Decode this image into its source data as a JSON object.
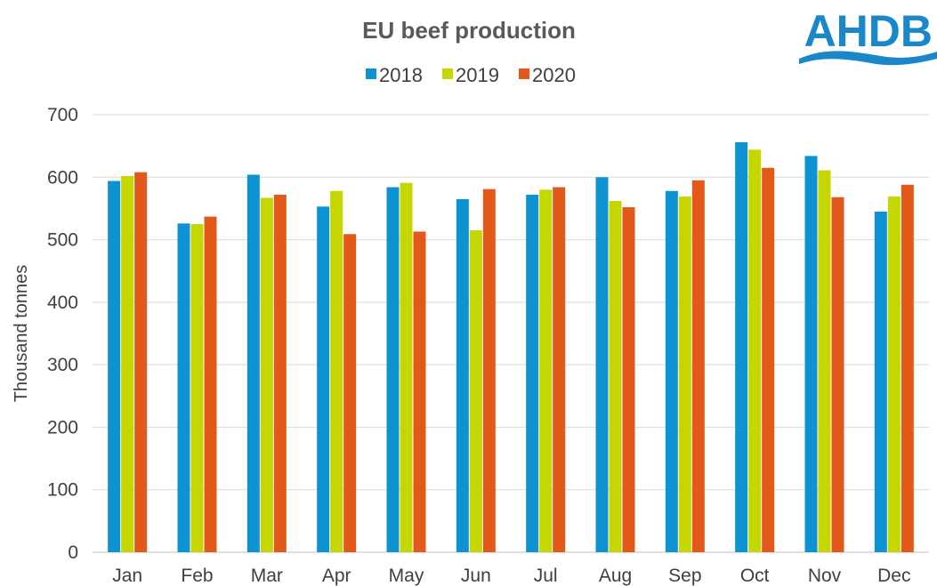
{
  "logo": {
    "text": "AHDB",
    "color": "#1a87c9"
  },
  "colors": {
    "grid": "#d9d9d9",
    "axis": "#bfbfbf"
  },
  "chart_data": {
    "type": "bar",
    "title": "EU beef production",
    "ylabel": "Thousand tonnes",
    "xlabel": "",
    "ylim": [
      0,
      700
    ],
    "yticks": [
      0,
      100,
      200,
      300,
      400,
      500,
      600,
      700
    ],
    "grid": true,
    "legend_position": "top-center",
    "categories": [
      "Jan",
      "Feb",
      "Mar",
      "Apr",
      "May",
      "Jun",
      "Jul",
      "Aug",
      "Sep",
      "Oct",
      "Nov",
      "Dec"
    ],
    "series": [
      {
        "name": "2018",
        "color": "#0d93d2",
        "values": [
          594,
          526,
          604,
          553,
          584,
          565,
          572,
          600,
          578,
          656,
          634,
          545
        ]
      },
      {
        "name": "2019",
        "color": "#c5d600",
        "values": [
          602,
          525,
          567,
          578,
          591,
          515,
          580,
          562,
          569,
          644,
          611,
          569
        ]
      },
      {
        "name": "2020",
        "color": "#e3591a",
        "values": [
          608,
          537,
          572,
          509,
          513,
          581,
          584,
          552,
          595,
          615,
          568,
          588
        ]
      }
    ]
  }
}
